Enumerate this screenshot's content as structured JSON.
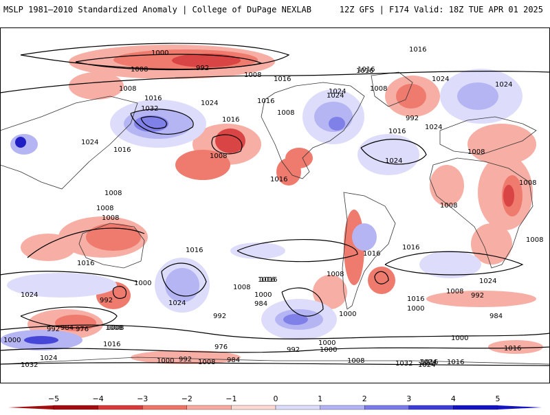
{
  "header": {
    "title_left": "MSLP 1981–2010 Standardized Anomaly | College of DuPage NEXLAB",
    "title_right": "12Z GFS | F174 Valid: 18Z TUE APR 01 2025"
  },
  "colorbar": {
    "ticks": [
      "−5",
      "−4",
      "−3",
      "−2",
      "−1",
      "0",
      "1",
      "2",
      "3",
      "4",
      "5"
    ],
    "colors": [
      "#a30d10",
      "#d83a3a",
      "#ee7466",
      "#f7aaa0",
      "#fcd9d2",
      "#ffffff",
      "#dcdcfb",
      "#b2b2f4",
      "#7a7ae8",
      "#3d3dd8",
      "#1414c0"
    ]
  },
  "map": {
    "contour_labels": [
      "1000",
      "992",
      "1008",
      "1008",
      "1016",
      "1024",
      "1016",
      "1008",
      "1016",
      "1024",
      "1032",
      "1024",
      "1016",
      "1008",
      "1016",
      "1016",
      "1008",
      "1024",
      "1016",
      "1024",
      "1008",
      "1016",
      "1024",
      "1008",
      "1024",
      "992",
      "1016",
      "1008",
      "1008",
      "1008",
      "1008",
      "1008",
      "1016",
      "1016",
      "1008",
      "1000",
      "1024",
      "1024",
      "1016",
      "1016",
      "1008",
      "1024",
      "1016",
      "1000",
      "992",
      "984",
      "1000",
      "1008",
      "992",
      "1008",
      "992",
      "1000",
      "984",
      "976",
      "1008",
      "1016",
      "976",
      "984",
      "992",
      "992",
      "1000",
      "1008",
      "1000",
      "1016",
      "1024",
      "1032",
      "1000",
      "1000",
      "992",
      "1008",
      "984",
      "1024",
      "1016",
      "1032",
      "1024",
      "1016",
      "1008",
      "1016",
      "1016",
      "1016",
      "1024",
      "1000"
    ],
    "colors": {
      "ocean": "#ffffff",
      "coastline": "#333333",
      "contour": "#000000"
    }
  }
}
